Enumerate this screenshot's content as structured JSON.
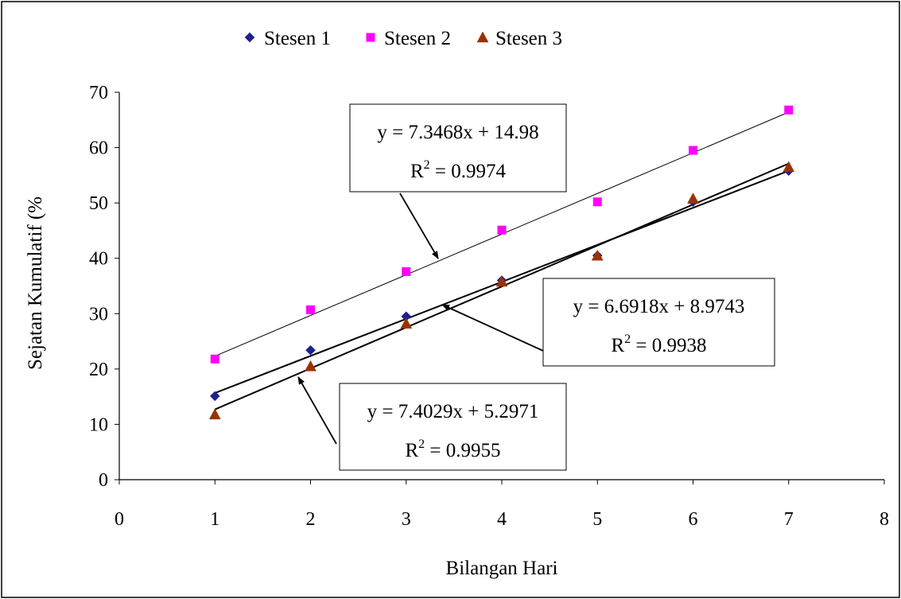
{
  "chart_data": {
    "type": "scatter",
    "xlabel": "Bilangan Hari",
    "ylabel": "Sejatan Kumulatif (%",
    "xlim": [
      0,
      8
    ],
    "ylim": [
      0,
      70
    ],
    "x_ticks": [
      0,
      1,
      2,
      3,
      4,
      5,
      6,
      7,
      8
    ],
    "y_ticks": [
      0,
      10,
      20,
      30,
      40,
      50,
      60,
      70
    ],
    "grid": false,
    "legend_position": "top",
    "series": [
      {
        "name": "Stesen 1",
        "marker": "diamond",
        "color": "#1f1f8f",
        "x": [
          1,
          2,
          3,
          4,
          5,
          6,
          7
        ],
        "values": [
          15.1,
          23.4,
          29.5,
          36.0,
          40.5,
          50.2,
          55.8
        ]
      },
      {
        "name": "Stesen 2",
        "marker": "square",
        "color": "#ff00ff",
        "x": [
          1,
          2,
          3,
          4,
          5,
          6,
          7
        ],
        "values": [
          21.8,
          30.7,
          37.6,
          45.1,
          50.2,
          59.5,
          66.8
        ]
      },
      {
        "name": "Stesen 3",
        "marker": "triangle",
        "color": "#993300",
        "x": [
          1,
          2,
          3,
          4,
          5,
          6,
          7
        ],
        "values": [
          11.8,
          20.5,
          28.2,
          35.8,
          40.5,
          50.8,
          56.5
        ]
      }
    ],
    "trendlines": [
      {
        "series": "Stesen 2",
        "slope": 7.3468,
        "intercept": 14.98,
        "x_range": [
          1,
          7
        ]
      },
      {
        "series": "Stesen 1",
        "slope": 6.6918,
        "intercept": 8.9743,
        "x_range": [
          1,
          7
        ]
      },
      {
        "series": "Stesen 3",
        "slope": 7.4029,
        "intercept": 5.2971,
        "x_range": [
          1,
          7
        ]
      }
    ],
    "annotations": [
      {
        "equation": "y = 7.3468x + 14.98",
        "r2_value": "= 0.9974"
      },
      {
        "equation": "y = 6.6918x + 8.9743",
        "r2_value": "= 0.9938"
      },
      {
        "equation": "y = 7.4029x + 5.2971",
        "r2_value": "= 0.9955"
      }
    ],
    "r2_symbol": "R",
    "r2_superscript": "2"
  }
}
